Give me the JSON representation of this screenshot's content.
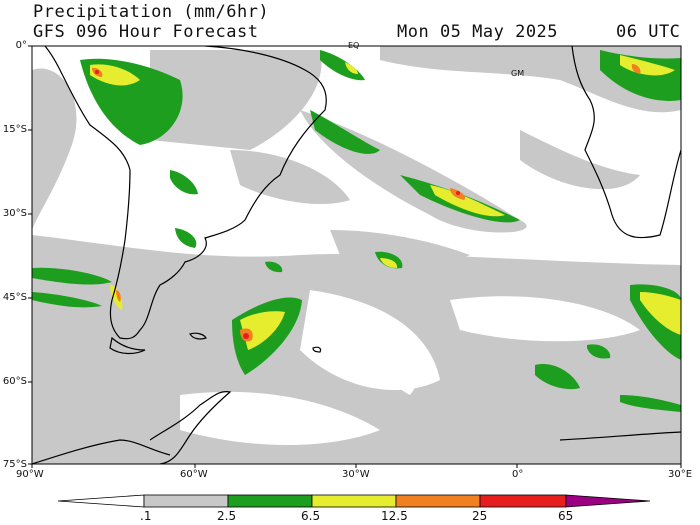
{
  "title": "Precipitation (mm/6hr)",
  "subtitle": "GFS 096 Hour Forecast",
  "valid_date": "Mon 05 May 2025",
  "valid_time": "06 UTC",
  "map_labels": {
    "equator": "EQ",
    "greenwich": "GM"
  },
  "lat_ticks": [
    "0°",
    "15°S",
    "30°S",
    "45°S",
    "60°S",
    "75°S"
  ],
  "lon_ticks": [
    "90°W",
    "60°W",
    "30°W",
    "0°",
    "30°E"
  ],
  "colorbar": {
    "labels": [
      ".1",
      "2.5",
      "6.5",
      "12.5",
      "25",
      "65"
    ],
    "colors": [
      "#ffffff",
      "#c8c8c8",
      "#1e9e1e",
      "#e6ed2e",
      "#f08020",
      "#e61e1e",
      "#9b0082"
    ]
  },
  "palette": {
    "land_outline": "#000000",
    "light_precip": "#c8c8c8"
  }
}
